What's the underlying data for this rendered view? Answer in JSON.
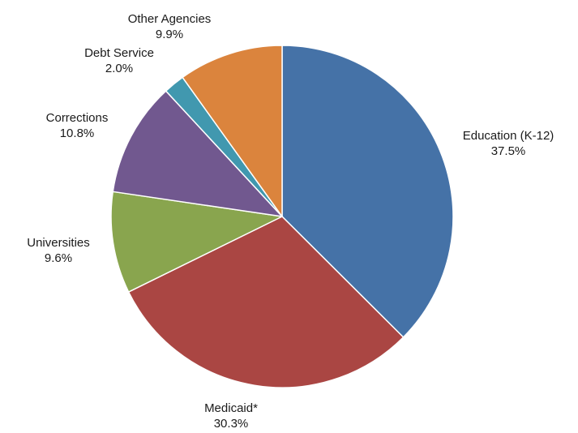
{
  "chart_data": {
    "type": "pie",
    "title": "",
    "slices": [
      {
        "name": "Education (K-12)",
        "value": 37.5,
        "label": "37.5%",
        "color": "#4572A7"
      },
      {
        "name": "Medicaid*",
        "value": 30.3,
        "label": "30.3%",
        "color": "#AA4643"
      },
      {
        "name": "Universities",
        "value": 9.6,
        "label": "9.6%",
        "color": "#89A54E"
      },
      {
        "name": "Corrections",
        "value": 10.8,
        "label": "10.8%",
        "color": "#71588F"
      },
      {
        "name": "Debt Service",
        "value": 2.0,
        "label": "2.0%",
        "color": "#4198AF"
      },
      {
        "name": "Other Agencies",
        "value": 9.9,
        "label": "9.9%",
        "color": "#DB843D"
      }
    ],
    "start_angle": "12 o'clock",
    "direction": "clockwise",
    "legend": "none",
    "data_labels": "outside"
  }
}
